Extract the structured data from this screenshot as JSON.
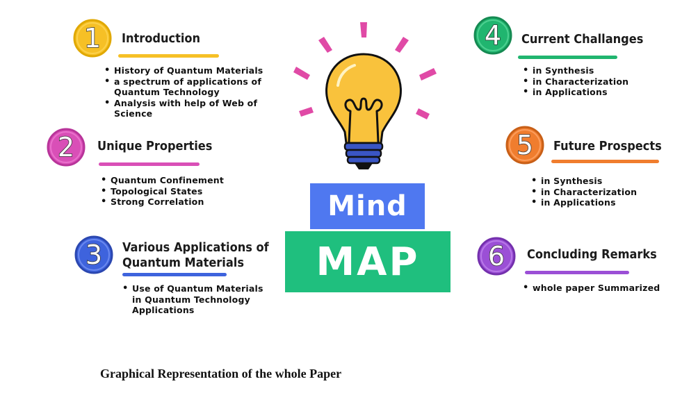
{
  "center": {
    "mind": "Mind",
    "map": "MAP"
  },
  "caption": "Graphical Representation of the whole Paper",
  "colors": {
    "yellow": "#f6c026",
    "pink": "#d94fb7",
    "blue": "#3e63dd",
    "green": "#20b56f",
    "orange": "#f07d2e",
    "purple": "#9b4fd6"
  },
  "icons": {
    "bulb": "light-bulb-icon",
    "rays": "light-ray-icon"
  },
  "sections": [
    {
      "num": "1",
      "title": "Introduction",
      "color": "#f6c026",
      "bullets": [
        "History of Quantum Materials",
        "a spectrum of applications of Quantum Technology",
        "Analysis with help of Web of Science"
      ]
    },
    {
      "num": "2",
      "title": "Unique Properties",
      "color": "#d94fb7",
      "bullets": [
        "Quantum Confinement",
        "Topological States",
        "Strong Correlation"
      ]
    },
    {
      "num": "3",
      "title_line1": "Various Applications of",
      "title_line2": "Quantum Materials",
      "color": "#3e63dd",
      "bullets": [
        "Use of Quantum Materials in Quantum Technology Applications"
      ]
    },
    {
      "num": "4",
      "title": "Current Challanges",
      "color": "#20b56f",
      "bullets": [
        "in Synthesis",
        "in Characterization",
        "in Applications"
      ]
    },
    {
      "num": "5",
      "title": "Future Prospects",
      "color": "#f07d2e",
      "bullets": [
        "in Synthesis",
        "in Characterization",
        "in Applications"
      ]
    },
    {
      "num": "6",
      "title": "Concluding Remarks",
      "color": "#9b4fd6",
      "bullets": [
        "whole paper Summarized"
      ]
    }
  ]
}
